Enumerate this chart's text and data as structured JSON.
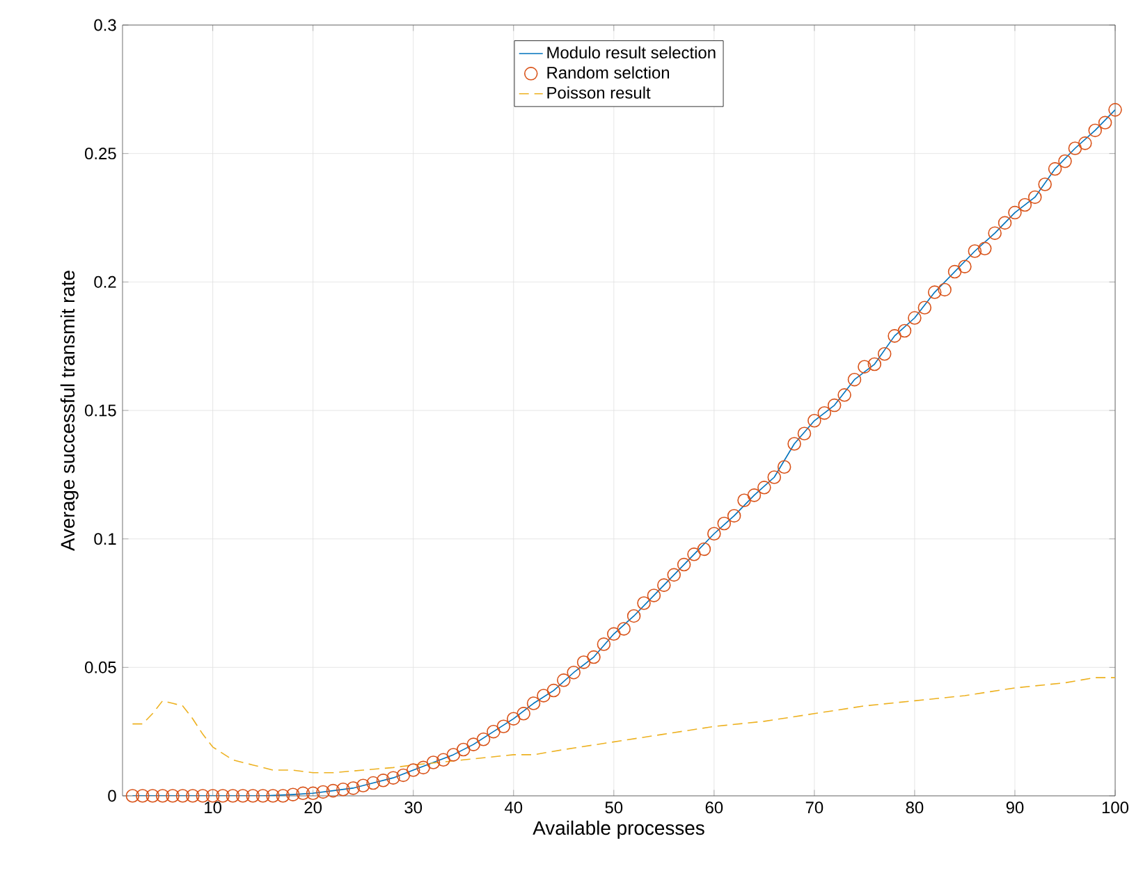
{
  "chart_data": {
    "type": "line",
    "xlabel": "Available processes",
    "ylabel": "Average successful transmit rate",
    "xlim": [
      1,
      100
    ],
    "ylim": [
      0,
      0.3
    ],
    "xticks": [
      10,
      20,
      30,
      40,
      50,
      60,
      70,
      80,
      90,
      100
    ],
    "yticks": [
      0,
      0.05,
      0.1,
      0.15,
      0.2,
      0.25,
      0.3
    ],
    "grid": true,
    "legend": "top",
    "series": [
      {
        "name": "Modulo result selection",
        "color": "#0072bd",
        "line_style": "solid",
        "marker": "none",
        "x": [
          2,
          5,
          10,
          15,
          18,
          20,
          22,
          24,
          26,
          28,
          30,
          32,
          34,
          36,
          38,
          40,
          42,
          44,
          46,
          48,
          50,
          52,
          54,
          56,
          58,
          60,
          62,
          64,
          66,
          68,
          70,
          72,
          74,
          76,
          78,
          80,
          82,
          84,
          86,
          88,
          90,
          92,
          94,
          96,
          98,
          100
        ],
        "values": [
          0,
          0,
          0,
          0,
          0.0005,
          0.001,
          0.002,
          0.003,
          0.005,
          0.007,
          0.01,
          0.013,
          0.016,
          0.02,
          0.025,
          0.03,
          0.036,
          0.041,
          0.048,
          0.054,
          0.063,
          0.07,
          0.078,
          0.086,
          0.094,
          0.102,
          0.109,
          0.117,
          0.124,
          0.137,
          0.146,
          0.152,
          0.162,
          0.168,
          0.179,
          0.186,
          0.196,
          0.204,
          0.212,
          0.219,
          0.227,
          0.233,
          0.244,
          0.252,
          0.259,
          0.267
        ]
      },
      {
        "name": "Random selction",
        "type": "scatter",
        "color": "#d95319",
        "marker": "circle",
        "x": [
          2,
          3,
          4,
          5,
          6,
          7,
          8,
          9,
          10,
          11,
          12,
          13,
          14,
          15,
          16,
          17,
          18,
          19,
          20,
          21,
          22,
          23,
          24,
          25,
          26,
          27,
          28,
          29,
          30,
          31,
          32,
          33,
          34,
          35,
          36,
          37,
          38,
          39,
          40,
          41,
          42,
          43,
          44,
          45,
          46,
          47,
          48,
          49,
          50,
          51,
          52,
          53,
          54,
          55,
          56,
          57,
          58,
          59,
          60,
          61,
          62,
          63,
          64,
          65,
          66,
          67,
          68,
          69,
          70,
          71,
          72,
          73,
          74,
          75,
          76,
          77,
          78,
          79,
          80,
          81,
          82,
          83,
          84,
          85,
          86,
          87,
          88,
          89,
          90,
          91,
          92,
          93,
          94,
          95,
          96,
          97,
          98,
          99,
          100
        ],
        "values": [
          0,
          0,
          0,
          0,
          0,
          0,
          0,
          0,
          0,
          0,
          0,
          0,
          0,
          0,
          0,
          0,
          0.0005,
          0.001,
          0.001,
          0.0015,
          0.002,
          0.0025,
          0.003,
          0.004,
          0.005,
          0.006,
          0.007,
          0.008,
          0.01,
          0.011,
          0.013,
          0.014,
          0.016,
          0.018,
          0.02,
          0.022,
          0.025,
          0.027,
          0.03,
          0.032,
          0.036,
          0.039,
          0.041,
          0.045,
          0.048,
          0.052,
          0.054,
          0.059,
          0.063,
          0.065,
          0.07,
          0.075,
          0.078,
          0.082,
          0.086,
          0.09,
          0.094,
          0.096,
          0.102,
          0.106,
          0.109,
          0.115,
          0.117,
          0.12,
          0.124,
          0.128,
          0.137,
          0.141,
          0.146,
          0.149,
          0.152,
          0.156,
          0.162,
          0.167,
          0.168,
          0.172,
          0.179,
          0.181,
          0.186,
          0.19,
          0.196,
          0.197,
          0.204,
          0.206,
          0.212,
          0.213,
          0.219,
          0.223,
          0.227,
          0.23,
          0.233,
          0.238,
          0.244,
          0.247,
          0.252,
          0.254,
          0.259,
          0.262,
          0.267
        ]
      },
      {
        "name": "Poisson result",
        "color": "#edb120",
        "line_style": "dashed",
        "marker": "none",
        "x": [
          2,
          3,
          4,
          5,
          6,
          7,
          8,
          9,
          10,
          12,
          14,
          16,
          18,
          20,
          22,
          25,
          28,
          30,
          35,
          40,
          42,
          45,
          50,
          55,
          60,
          65,
          70,
          75,
          80,
          85,
          90,
          95,
          98,
          100
        ],
        "values": [
          0.028,
          0.028,
          0.032,
          0.037,
          0.036,
          0.035,
          0.03,
          0.024,
          0.019,
          0.014,
          0.012,
          0.01,
          0.01,
          0.009,
          0.009,
          0.01,
          0.011,
          0.012,
          0.014,
          0.016,
          0.016,
          0.018,
          0.021,
          0.024,
          0.027,
          0.029,
          0.032,
          0.035,
          0.037,
          0.039,
          0.042,
          0.044,
          0.046,
          0.046
        ]
      }
    ]
  }
}
